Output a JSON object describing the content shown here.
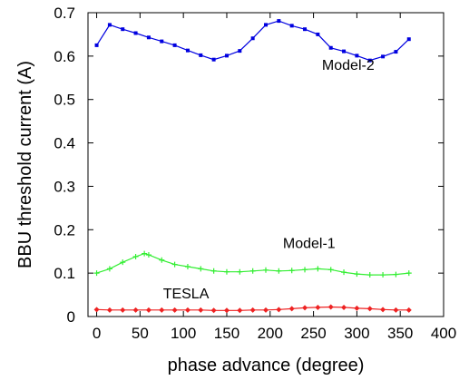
{
  "chart_data": {
    "type": "line",
    "xlabel": "phase advance (degree)",
    "ylabel": "BBU threshold current (A)",
    "xlim": [
      -10,
      400
    ],
    "ylim": [
      0,
      0.7
    ],
    "x_ticks": [
      "0",
      "50",
      "100",
      "150",
      "200",
      "250",
      "300",
      "350",
      "400"
    ],
    "y_ticks": [
      "0",
      "0.1",
      "0.2",
      "0.3",
      "0.4",
      "0.5",
      "0.6",
      "0.7"
    ],
    "grid": false,
    "series": [
      {
        "name": "Model-2",
        "color": "#0000e0",
        "marker": "square",
        "x": [
          0,
          15,
          30,
          45,
          60,
          75,
          90,
          105,
          120,
          135,
          150,
          165,
          180,
          195,
          210,
          225,
          240,
          255,
          270,
          285,
          300,
          315,
          330,
          345,
          360
        ],
        "y": [
          0.625,
          0.672,
          0.662,
          0.653,
          0.643,
          0.634,
          0.625,
          0.613,
          0.602,
          0.592,
          0.601,
          0.612,
          0.641,
          0.672,
          0.681,
          0.67,
          0.662,
          0.65,
          0.619,
          0.611,
          0.601,
          0.59,
          0.599,
          0.61,
          0.639
        ]
      },
      {
        "name": "Model-1",
        "color": "#33ee33",
        "marker": "plus",
        "x": [
          0,
          15,
          30,
          45,
          55,
          60,
          75,
          90,
          105,
          120,
          135,
          150,
          165,
          180,
          195,
          210,
          225,
          240,
          255,
          270,
          285,
          300,
          315,
          330,
          345,
          360
        ],
        "y": [
          0.1,
          0.11,
          0.125,
          0.138,
          0.145,
          0.142,
          0.13,
          0.12,
          0.115,
          0.11,
          0.105,
          0.103,
          0.103,
          0.105,
          0.107,
          0.105,
          0.106,
          0.108,
          0.11,
          0.108,
          0.102,
          0.098,
          0.096,
          0.096,
          0.097,
          0.1
        ]
      },
      {
        "name": "TESLA",
        "color": "#ee2222",
        "marker": "diamond",
        "x": [
          0,
          15,
          30,
          45,
          60,
          75,
          90,
          105,
          120,
          135,
          150,
          165,
          180,
          195,
          210,
          225,
          240,
          255,
          270,
          285,
          300,
          315,
          330,
          345,
          360
        ],
        "y": [
          0.016,
          0.015,
          0.015,
          0.015,
          0.015,
          0.015,
          0.015,
          0.015,
          0.015,
          0.014,
          0.014,
          0.014,
          0.015,
          0.015,
          0.016,
          0.018,
          0.02,
          0.021,
          0.022,
          0.021,
          0.019,
          0.018,
          0.016,
          0.015,
          0.015
        ]
      }
    ],
    "annotations": [
      {
        "text": "Model-2",
        "x": 290,
        "y": 0.568
      },
      {
        "text": "Model-1",
        "x": 245,
        "y": 0.158
      },
      {
        "text": "TESLA",
        "x": 103,
        "y": 0.042
      }
    ]
  }
}
